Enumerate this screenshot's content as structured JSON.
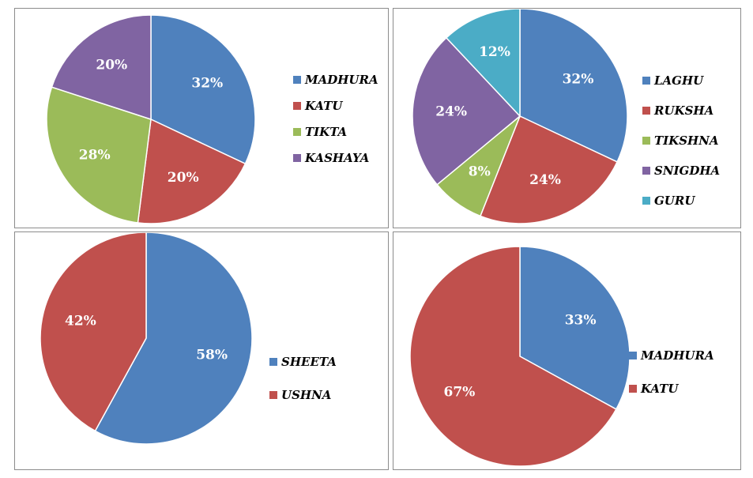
{
  "chart_data": [
    {
      "type": "pie",
      "title": "",
      "legend_position": "right",
      "labels": [
        "MADHURA",
        "KATU",
        "TIKTA",
        "KASHAYA"
      ],
      "values": [
        32,
        20,
        28,
        20
      ],
      "value_labels": [
        "32%",
        "20%",
        "28%",
        "20%"
      ],
      "colors": [
        "#4F81BD",
        "#C0504D",
        "#9BBB59",
        "#8064A2"
      ]
    },
    {
      "type": "pie",
      "title": "",
      "legend_position": "right",
      "labels": [
        "LAGHU",
        "RUKSHA",
        "TIKSHNA",
        "SNIGDHA",
        "GURU"
      ],
      "values": [
        32,
        24,
        8,
        24,
        12
      ],
      "value_labels": [
        "32%",
        "24%",
        "8%",
        "24%",
        "12%"
      ],
      "colors": [
        "#4F81BD",
        "#C0504D",
        "#9BBB59",
        "#8064A2",
        "#4BACC6"
      ]
    },
    {
      "type": "pie",
      "title": "",
      "legend_position": "right",
      "labels": [
        "SHEETA",
        "USHNA"
      ],
      "values": [
        58,
        42
      ],
      "value_labels": [
        "58%",
        "42%"
      ],
      "colors": [
        "#4F81BD",
        "#C0504D"
      ]
    },
    {
      "type": "pie",
      "title": "",
      "legend_position": "right",
      "labels": [
        "MADHURA",
        "KATU"
      ],
      "values": [
        33,
        67
      ],
      "value_labels": [
        "33%",
        "67%"
      ],
      "colors": [
        "#4F81BD",
        "#C0504D"
      ]
    }
  ]
}
